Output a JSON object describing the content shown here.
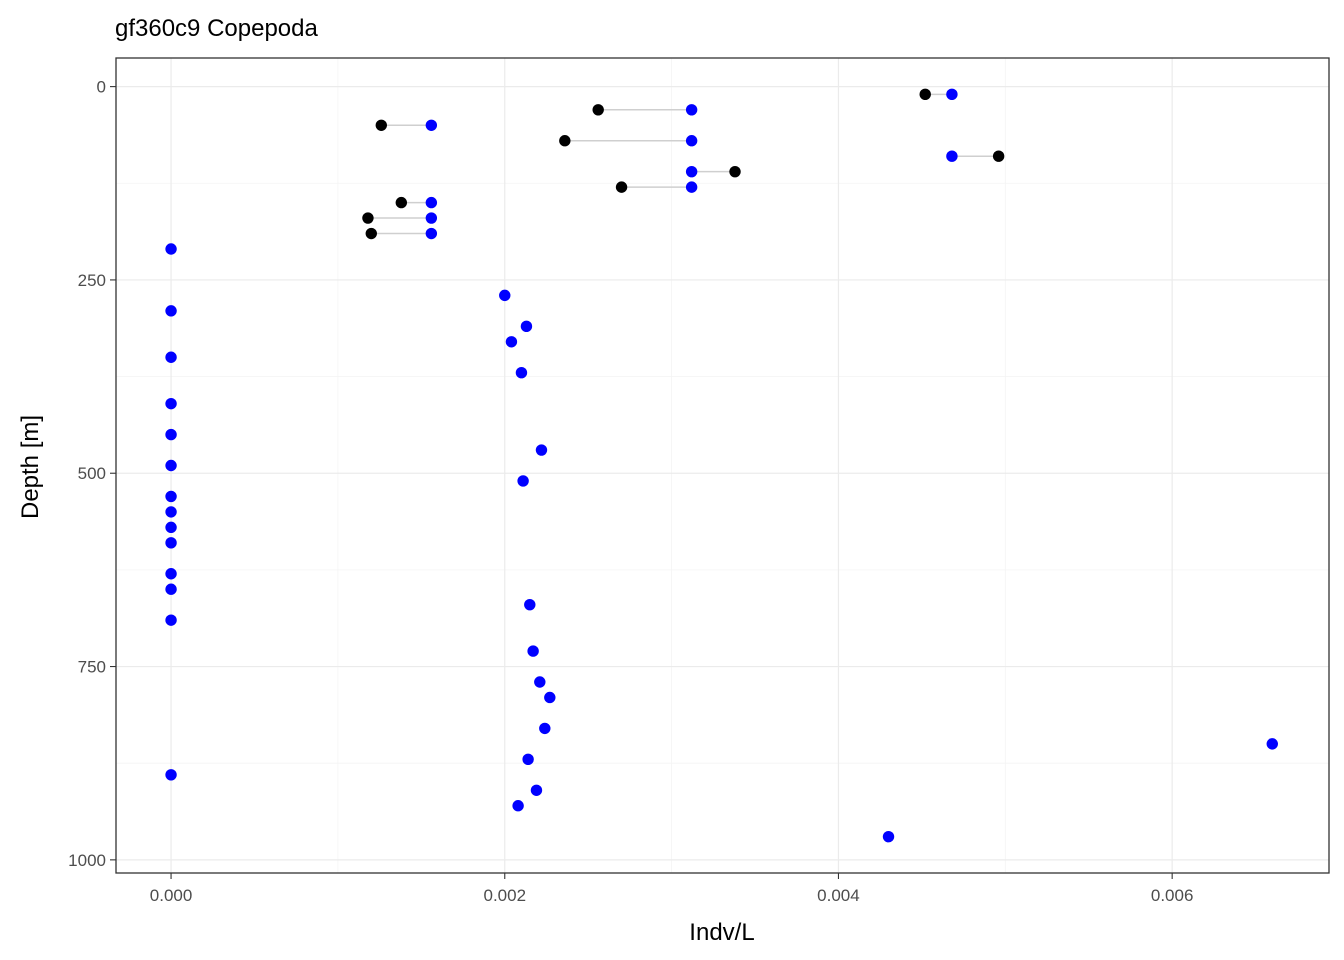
{
  "chart_data": {
    "type": "scatter",
    "title": "gf360c9 Copepoda",
    "xlabel": "Indv/L",
    "ylabel": "Depth [m]",
    "xlim": [
      -0.00033,
      0.00694
    ],
    "ylim": [
      -37,
      1017
    ],
    "y_reversed": true,
    "grid": true,
    "x_ticks": [
      {
        "value": 0.0,
        "label": "0.000"
      },
      {
        "value": 0.002,
        "label": "0.002"
      },
      {
        "value": 0.004,
        "label": "0.004"
      },
      {
        "value": 0.006,
        "label": "0.006"
      }
    ],
    "y_ticks": [
      {
        "value": 0,
        "label": "0"
      },
      {
        "value": 250,
        "label": "250"
      },
      {
        "value": 500,
        "label": "500"
      },
      {
        "value": 750,
        "label": "750"
      },
      {
        "value": 1000,
        "label": "1000"
      }
    ],
    "series": [
      {
        "color": "#0000ff",
        "points": [
          {
            "x": 0.00468,
            "y": 10
          },
          {
            "x": 0.00312,
            "y": 30
          },
          {
            "x": 0.00156,
            "y": 50
          },
          {
            "x": 0.00312,
            "y": 70
          },
          {
            "x": 0.00468,
            "y": 90
          },
          {
            "x": 0.00312,
            "y": 110
          },
          {
            "x": 0.00312,
            "y": 130
          },
          {
            "x": 0.00156,
            "y": 150
          },
          {
            "x": 0.00156,
            "y": 170
          },
          {
            "x": 0.00156,
            "y": 190
          },
          {
            "x": 0.0,
            "y": 210
          },
          {
            "x": 0.002,
            "y": 270
          },
          {
            "x": 0.0,
            "y": 290
          },
          {
            "x": 0.00213,
            "y": 310
          },
          {
            "x": 0.00204,
            "y": 330
          },
          {
            "x": 0.0,
            "y": 350
          },
          {
            "x": 0.0021,
            "y": 370
          },
          {
            "x": 0.0,
            "y": 410
          },
          {
            "x": 0.0,
            "y": 450
          },
          {
            "x": 0.00222,
            "y": 470
          },
          {
            "x": 0.0,
            "y": 490
          },
          {
            "x": 0.00211,
            "y": 510
          },
          {
            "x": 0.0,
            "y": 530
          },
          {
            "x": 0.0,
            "y": 550
          },
          {
            "x": 0.0,
            "y": 570
          },
          {
            "x": 0.0,
            "y": 590
          },
          {
            "x": 0.0,
            "y": 630
          },
          {
            "x": 0.0,
            "y": 650
          },
          {
            "x": 0.00215,
            "y": 670
          },
          {
            "x": 0.0,
            "y": 690
          },
          {
            "x": 0.00217,
            "y": 730
          },
          {
            "x": 0.00221,
            "y": 770
          },
          {
            "x": 0.00227,
            "y": 790
          },
          {
            "x": 0.00224,
            "y": 830
          },
          {
            "x": 0.00214,
            "y": 870
          },
          {
            "x": 0.0066,
            "y": 850
          },
          {
            "x": 0.0,
            "y": 890
          },
          {
            "x": 0.00219,
            "y": 910
          },
          {
            "x": 0.00208,
            "y": 930
          },
          {
            "x": 0.0043,
            "y": 970
          }
        ]
      },
      {
        "color": "#000000",
        "points": [
          {
            "x": 0.00452,
            "y": 10
          },
          {
            "x": 0.00256,
            "y": 30
          },
          {
            "x": 0.00126,
            "y": 50
          },
          {
            "x": 0.00236,
            "y": 70
          },
          {
            "x": 0.00496,
            "y": 90
          },
          {
            "x": 0.00338,
            "y": 110
          },
          {
            "x": 0.0027,
            "y": 130
          },
          {
            "x": 0.00138,
            "y": 150
          },
          {
            "x": 0.00118,
            "y": 170
          },
          {
            "x": 0.0012,
            "y": 190
          }
        ]
      }
    ],
    "connectors": [
      {
        "y": 10,
        "x1": 0.00452,
        "x2": 0.00468
      },
      {
        "y": 30,
        "x1": 0.00256,
        "x2": 0.00312
      },
      {
        "y": 50,
        "x1": 0.00126,
        "x2": 0.00156
      },
      {
        "y": 70,
        "x1": 0.00236,
        "x2": 0.00312
      },
      {
        "y": 90,
        "x1": 0.00468,
        "x2": 0.00496
      },
      {
        "y": 110,
        "x1": 0.00312,
        "x2": 0.00338
      },
      {
        "y": 130,
        "x1": 0.0027,
        "x2": 0.00312
      },
      {
        "y": 150,
        "x1": 0.00138,
        "x2": 0.00156
      },
      {
        "y": 170,
        "x1": 0.00118,
        "x2": 0.00156
      },
      {
        "y": 190,
        "x1": 0.0012,
        "x2": 0.00156
      }
    ]
  }
}
